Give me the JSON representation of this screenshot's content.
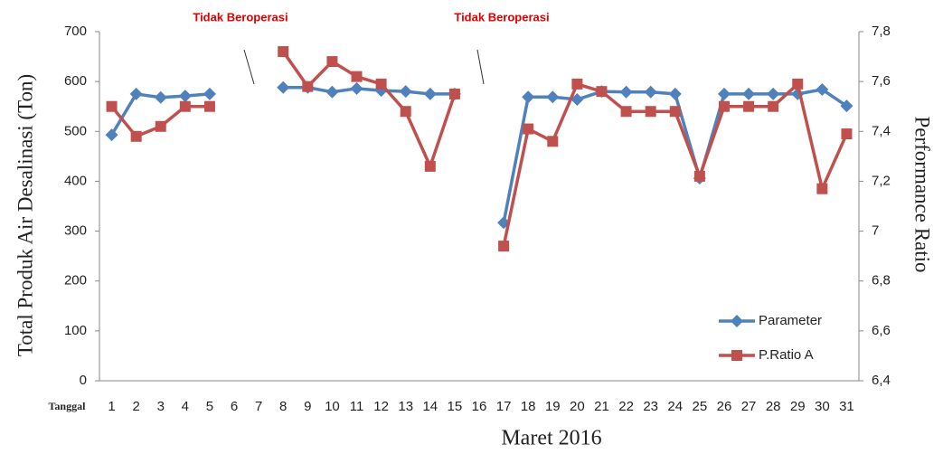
{
  "chart_data": {
    "type": "line",
    "x_label": "Maret 2016",
    "x_prefix_label": "Tanggal",
    "y_label": "Total Produk Air Desalinasi (Ton)",
    "y2_label": "Performance Ratio",
    "annotations": [
      "Tidak Beroperasi",
      "Tidak Beroperasi"
    ],
    "categories": [
      "1",
      "2",
      "3",
      "4",
      "5",
      "6",
      "7",
      "8",
      "9",
      "10",
      "11",
      "12",
      "13",
      "14",
      "15",
      "16",
      "17",
      "18",
      "19",
      "20",
      "21",
      "22",
      "23",
      "24",
      "25",
      "26",
      "27",
      "28",
      "29",
      "30",
      "31"
    ],
    "ylim": [
      0,
      700
    ],
    "yticks": [
      0,
      100,
      200,
      300,
      400,
      500,
      600,
      700
    ],
    "y2lim": [
      6.4,
      7.8
    ],
    "y2ticks": [
      {
        "value": 6.4,
        "label": "6,4"
      },
      {
        "value": 6.6,
        "label": "6,6"
      },
      {
        "value": 6.8,
        "label": "6,8"
      },
      7,
      {
        "value": 7.2,
        "label": "7,2"
      },
      {
        "value": 7.4,
        "label": "7,4"
      },
      {
        "value": 7.6,
        "label": "7,6"
      },
      {
        "value": 7.8,
        "label": "7,8"
      }
    ],
    "grid": false,
    "legend": "lower right",
    "series": [
      {
        "name": "Parameter",
        "color": "#4F81BD",
        "marker": "diamond",
        "axis": "y",
        "values": [
          493,
          575,
          568,
          571,
          575,
          null,
          null,
          588,
          588,
          579,
          586,
          582,
          580,
          575,
          575,
          null,
          317,
          569,
          569,
          564,
          580,
          579,
          579,
          575,
          406,
          575,
          575,
          575,
          575,
          584,
          551
        ]
      },
      {
        "name": "P.Ratio A",
        "color": "#C0504D",
        "marker": "square",
        "axis": "y2",
        "values": [
          7.5,
          7.38,
          7.42,
          7.5,
          7.5,
          null,
          null,
          7.72,
          7.58,
          7.68,
          7.62,
          7.59,
          7.48,
          7.26,
          7.55,
          null,
          6.94,
          7.41,
          7.36,
          7.59,
          7.56,
          7.48,
          7.48,
          7.48,
          7.22,
          7.5,
          7.5,
          7.5,
          7.59,
          7.17,
          7.39
        ]
      }
    ]
  }
}
